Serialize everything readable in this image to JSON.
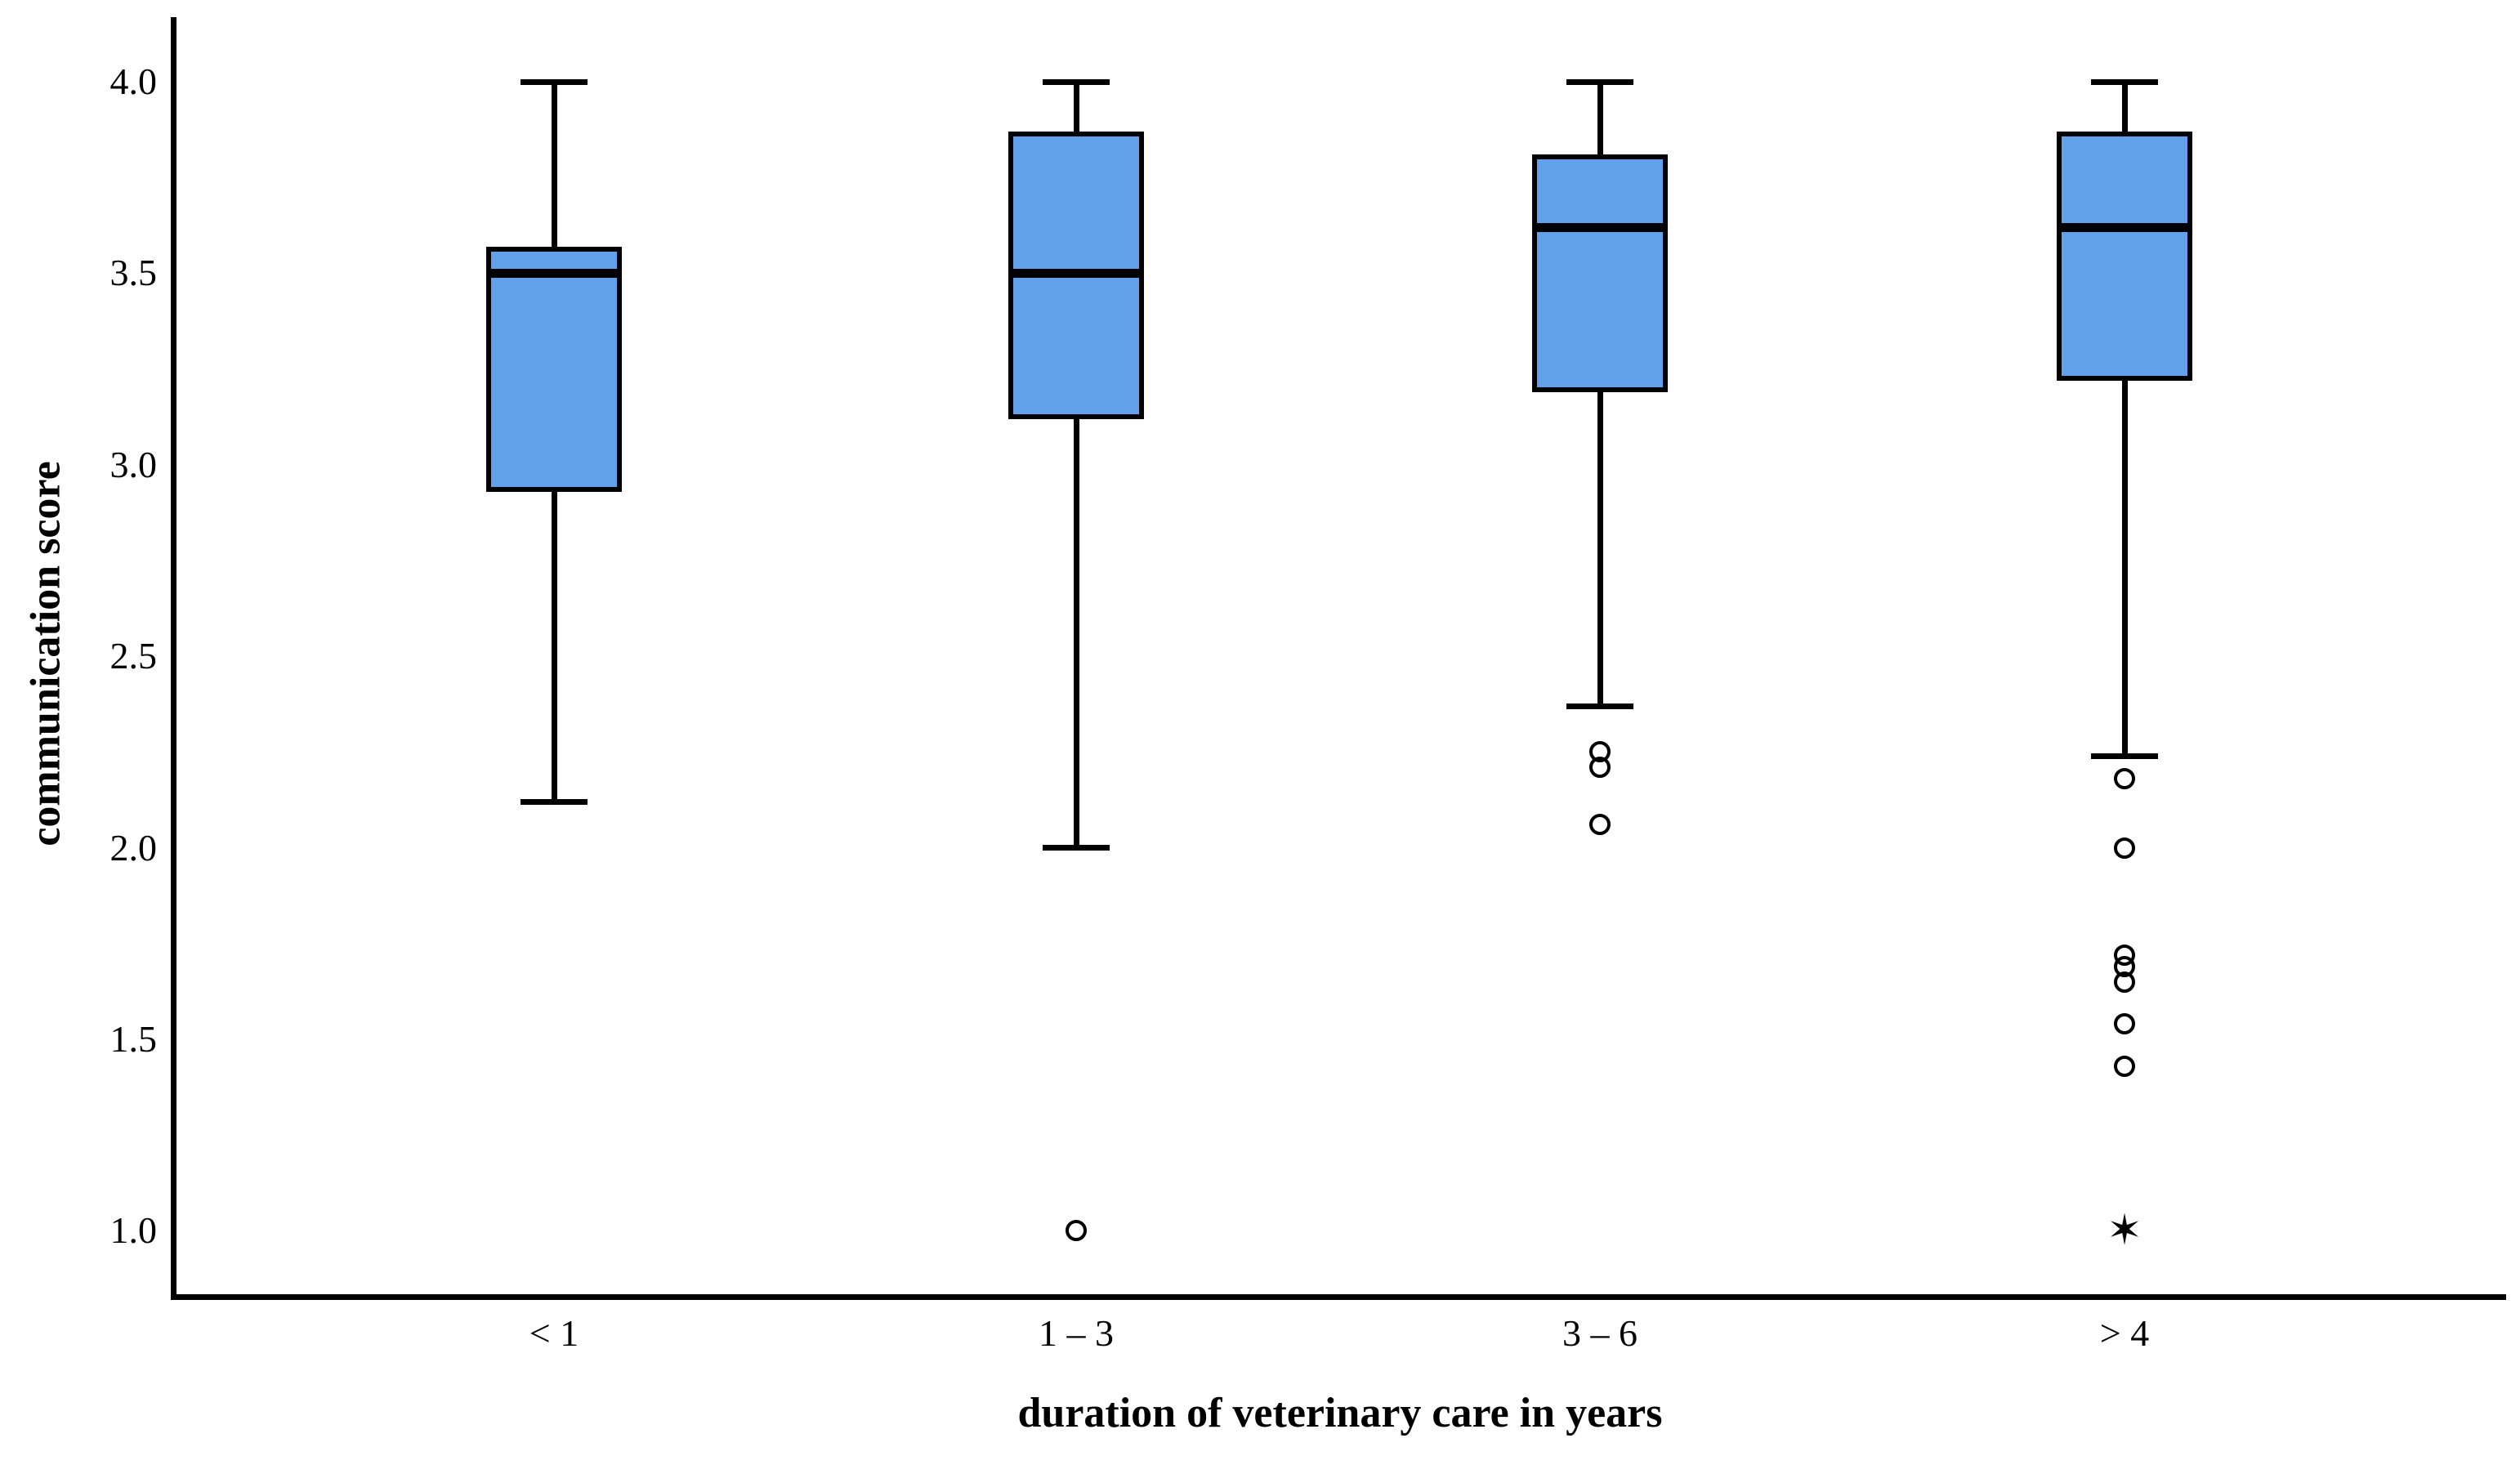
{
  "chart_data": {
    "type": "boxplot",
    "title": "",
    "xlabel": "duration of veterinary care in years",
    "ylabel": "communication score",
    "ylim": [
      0.83,
      4.17
    ],
    "grid": false,
    "legend": "none",
    "box_fill_color": "#61A0EA",
    "line_color": "#000000",
    "y_ticks": [
      {
        "label": "4.0",
        "value": 4.0
      },
      {
        "label": "3.5",
        "value": 3.5
      },
      {
        "label": "3.0",
        "value": 3.0
      },
      {
        "label": "2.5",
        "value": 2.5
      },
      {
        "label": "2.0",
        "value": 2.0
      },
      {
        "label": "1.5",
        "value": 1.5
      },
      {
        "label": "1.0",
        "value": 1.0
      }
    ],
    "categories": [
      "< 1",
      "1 – 3",
      "3 – 6",
      "> 4"
    ],
    "groups": [
      {
        "label": "< 1",
        "whisker_low": 2.12,
        "q1": 2.93,
        "median": 3.5,
        "q3": 3.57,
        "whisker_high": 4.0,
        "outliers": [],
        "extreme_outliers": []
      },
      {
        "label": "1 – 3",
        "whisker_low": 2.0,
        "q1": 3.12,
        "median": 3.5,
        "q3": 3.87,
        "whisker_high": 4.0,
        "outliers": [
          1.0
        ],
        "extreme_outliers": []
      },
      {
        "label": "3 – 6",
        "whisker_low": 2.37,
        "q1": 3.19,
        "median": 3.62,
        "q3": 3.81,
        "whisker_high": 4.0,
        "outliers": [
          2.25,
          2.21,
          2.06
        ],
        "extreme_outliers": []
      },
      {
        "label": "> 4",
        "whisker_low": 2.24,
        "q1": 3.22,
        "median": 3.62,
        "q3": 3.87,
        "whisker_high": 4.0,
        "outliers": [
          2.18,
          2.0,
          1.72,
          1.69,
          1.65,
          1.54,
          1.43
        ],
        "extreme_outliers": [
          1.0
        ]
      }
    ],
    "extreme_marker_glyph": "✶"
  }
}
